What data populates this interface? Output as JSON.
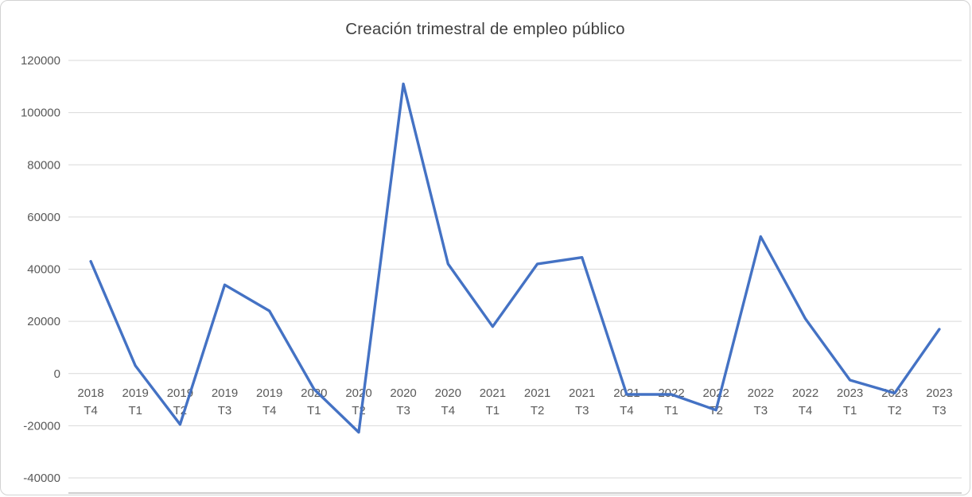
{
  "chart_data": {
    "type": "line",
    "title": "Creación trimestral de empleo público",
    "categories": [
      "2018 T4",
      "2019 T1",
      "2019 T2",
      "2019 T3",
      "2019 T4",
      "2020 T1",
      "2020 T2",
      "2020 T3",
      "2020 T4",
      "2021 T1",
      "2021 T2",
      "2021 T3",
      "2021 T4",
      "2022 T1",
      "2022 T2",
      "2022 T3",
      "2022 T4",
      "2023 T1",
      "2023 T2",
      "2023 T3"
    ],
    "values": [
      43000,
      3000,
      -19500,
      34000,
      24000,
      -6000,
      -22500,
      111000,
      42000,
      18000,
      42000,
      44500,
      -8000,
      -8000,
      -14000,
      52500,
      21000,
      -2500,
      -7500,
      17000
    ],
    "ylim": [
      -40000,
      120000
    ],
    "ytick_step": 20000,
    "ytick_labels": [
      "-40000",
      "-20000",
      "0",
      "20000",
      "40000",
      "60000",
      "80000",
      "100000",
      "120000"
    ],
    "xlabel": "",
    "ylabel": "",
    "grid": true,
    "legend": "none",
    "colors": {
      "line": "#4472C4",
      "grid": "#D9D9D9",
      "axis_line": "#BFBFBF",
      "tick_text": "#595959",
      "title_text": "#404040",
      "background": "#FFFFFF"
    }
  }
}
